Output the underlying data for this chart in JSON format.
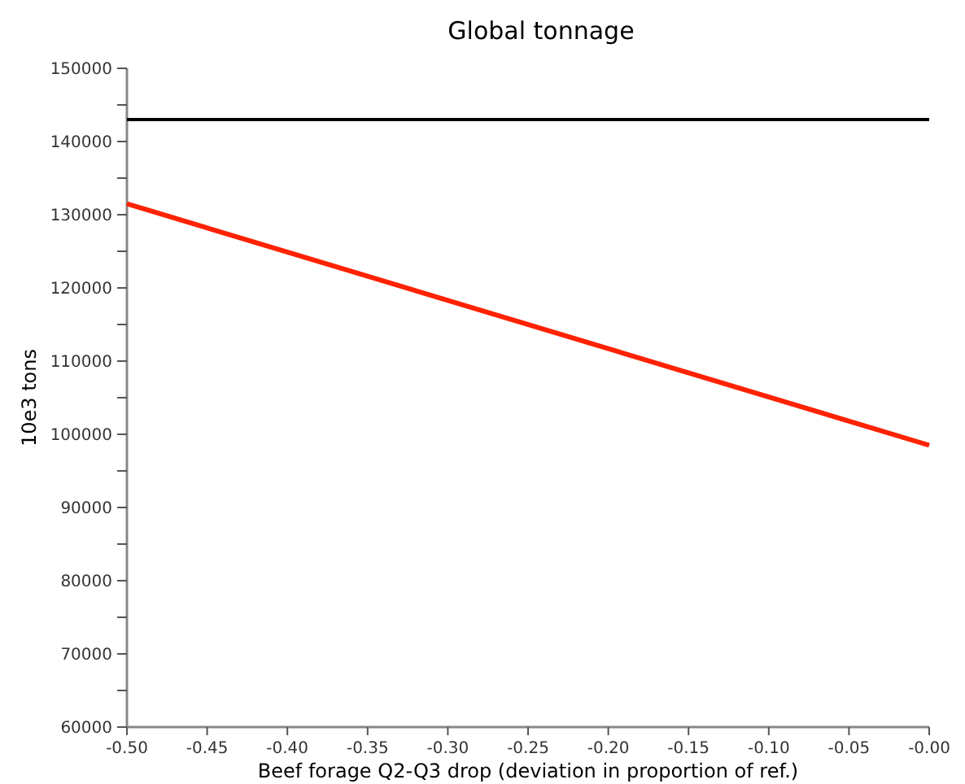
{
  "chart_data": {
    "type": "line",
    "title": "Global tonnage",
    "xlabel": "Beef forage Q2-Q3 drop (deviation in proportion of ref.)",
    "ylabel": "10e3 tons",
    "xlim": [
      -0.5,
      0
    ],
    "xticks": [
      {
        "value": -0.5,
        "label": "-0.50"
      },
      {
        "value": -0.45,
        "label": "-0.45"
      },
      {
        "value": -0.4,
        "label": "-0.40"
      },
      {
        "value": -0.35,
        "label": "-0.35"
      },
      {
        "value": -0.3,
        "label": "-0.30"
      },
      {
        "value": -0.25,
        "label": "-0.25"
      },
      {
        "value": -0.2,
        "label": "-0.20"
      },
      {
        "value": -0.15,
        "label": "-0.15"
      },
      {
        "value": -0.1,
        "label": "-0.10"
      },
      {
        "value": -0.05,
        "label": "-0.05"
      },
      {
        "value": 0,
        "label": "-0.00"
      }
    ],
    "ylim": [
      60000,
      150000
    ],
    "yticks": [
      60000,
      {
        "value": 65000,
        "label": null
      },
      70000,
      {
        "value": 75000,
        "label": null
      },
      80000,
      {
        "value": 85000,
        "label": null
      },
      90000,
      {
        "value": 95000,
        "label": null
      },
      100000,
      {
        "value": 105000,
        "label": null
      },
      110000,
      {
        "value": 115000,
        "label": null
      },
      120000,
      {
        "value": 125000,
        "label": null
      },
      130000,
      {
        "value": 135000,
        "label": null
      },
      140000,
      {
        "value": 145000,
        "label": null
      },
      150000
    ],
    "grid": false,
    "marker": "none",
    "line_style": "solid",
    "x": [
      -0.5,
      0
    ],
    "series": [
      {
        "color": "#000000",
        "values": [
          143000,
          143000
        ]
      },
      {
        "color": "#ff2200",
        "values": [
          131500,
          98500
        ]
      }
    ]
  }
}
